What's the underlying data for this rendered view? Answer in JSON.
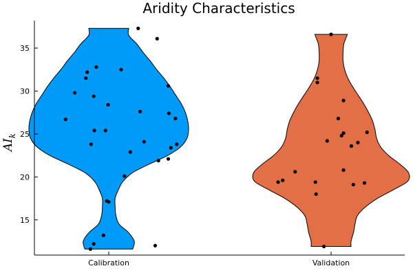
{
  "chart_data": {
    "type": "violin",
    "title": "Aridity Characteristics",
    "ylabel_main": "AI",
    "ylabel_sub": "k",
    "categories": [
      "Calibration",
      "Validation"
    ],
    "y_ticks": [
      15,
      20,
      25,
      30,
      35
    ],
    "ylim": [
      10.9,
      38.2
    ],
    "grid": false,
    "legend": "none",
    "series": [
      {
        "category": "Calibration",
        "color": "#009AF9",
        "range": [
          11.6,
          37.3
        ],
        "density": [
          [
            11.6,
            0.3
          ],
          [
            12.5,
            0.32
          ],
          [
            13.5,
            0.25
          ],
          [
            14.5,
            0.13
          ],
          [
            15.5,
            0.09
          ],
          [
            16.5,
            0.08
          ],
          [
            17.5,
            0.08
          ],
          [
            18.5,
            0.12
          ],
          [
            19.5,
            0.18
          ],
          [
            20.5,
            0.3
          ],
          [
            21.5,
            0.51
          ],
          [
            22.5,
            0.74
          ],
          [
            23.5,
            0.9
          ],
          [
            24.5,
            0.98
          ],
          [
            25.5,
            1.0
          ],
          [
            26.5,
            0.99
          ],
          [
            27.5,
            0.96
          ],
          [
            28.5,
            0.91
          ],
          [
            29.5,
            0.84
          ],
          [
            30.5,
            0.77
          ],
          [
            31.5,
            0.69
          ],
          [
            32.5,
            0.6
          ],
          [
            33.5,
            0.52
          ],
          [
            34.5,
            0.43
          ],
          [
            35.5,
            0.35
          ],
          [
            36.5,
            0.25
          ],
          [
            37.3,
            0.25
          ]
        ],
        "points": [
          [
            0.45,
            37.3
          ],
          [
            0.74,
            36.1
          ],
          [
            -0.19,
            32.8
          ],
          [
            0.19,
            32.5
          ],
          [
            -0.33,
            32.2
          ],
          [
            -0.35,
            31.5
          ],
          [
            0.91,
            30.6
          ],
          [
            -0.52,
            29.8
          ],
          [
            -0.23,
            29.4
          ],
          [
            -0.01,
            28.4
          ],
          [
            0.48,
            27.6
          ],
          [
            0.92,
            27.4
          ],
          [
            1.02,
            26.8
          ],
          [
            -0.66,
            26.7
          ],
          [
            -0.22,
            25.4
          ],
          [
            -0.05,
            25.4
          ],
          [
            0.54,
            24.1
          ],
          [
            1.04,
            23.8
          ],
          [
            0.95,
            23.4
          ],
          [
            -0.27,
            23.8
          ],
          [
            0.33,
            22.9
          ],
          [
            0.91,
            22.1
          ],
          [
            0.76,
            21.9
          ],
          [
            0.24,
            20.1
          ],
          [
            -0.03,
            17.2
          ],
          [
            0.0,
            17.1
          ],
          [
            -0.08,
            13.2
          ],
          [
            -0.23,
            12.2
          ],
          [
            -0.28,
            11.6
          ],
          [
            0.71,
            12.0
          ]
        ]
      },
      {
        "category": "Validation",
        "color": "#E26F46",
        "range": [
          11.9,
          36.6
        ],
        "density": [
          [
            11.9,
            0.25
          ],
          [
            12.5,
            0.25
          ],
          [
            13.5,
            0.28
          ],
          [
            14.5,
            0.3
          ],
          [
            15.5,
            0.33
          ],
          [
            16.5,
            0.43
          ],
          [
            17.5,
            0.58
          ],
          [
            18.5,
            0.78
          ],
          [
            19.5,
            0.96
          ],
          [
            20.5,
            0.97
          ],
          [
            21.5,
            0.86
          ],
          [
            22.5,
            0.72
          ],
          [
            23.5,
            0.62
          ],
          [
            24.5,
            0.57
          ],
          [
            25.5,
            0.55
          ],
          [
            26.5,
            0.52
          ],
          [
            27.5,
            0.47
          ],
          [
            28.5,
            0.41
          ],
          [
            29.5,
            0.34
          ],
          [
            30.5,
            0.27
          ],
          [
            31.5,
            0.21
          ],
          [
            32.5,
            0.17
          ],
          [
            33.5,
            0.15
          ],
          [
            34.5,
            0.15
          ],
          [
            35.5,
            0.16
          ],
          [
            36.5,
            0.2
          ],
          [
            36.6,
            0.2
          ]
        ],
        "points": [
          [
            0.0,
            36.6
          ],
          [
            -0.21,
            31.5
          ],
          [
            -0.21,
            31.0
          ],
          [
            0.19,
            28.9
          ],
          [
            0.11,
            26.8
          ],
          [
            0.55,
            25.2
          ],
          [
            0.19,
            25.1
          ],
          [
            0.16,
            24.8
          ],
          [
            -0.06,
            24.2
          ],
          [
            0.41,
            24.0
          ],
          [
            0.31,
            23.6
          ],
          [
            -0.55,
            20.6
          ],
          [
            0.19,
            20.8
          ],
          [
            -0.74,
            19.6
          ],
          [
            -0.81,
            19.4
          ],
          [
            -0.24,
            19.4
          ],
          [
            0.51,
            19.3
          ],
          [
            0.34,
            19.1
          ],
          [
            -0.23,
            18.0
          ],
          [
            -0.11,
            11.9
          ]
        ]
      }
    ]
  }
}
